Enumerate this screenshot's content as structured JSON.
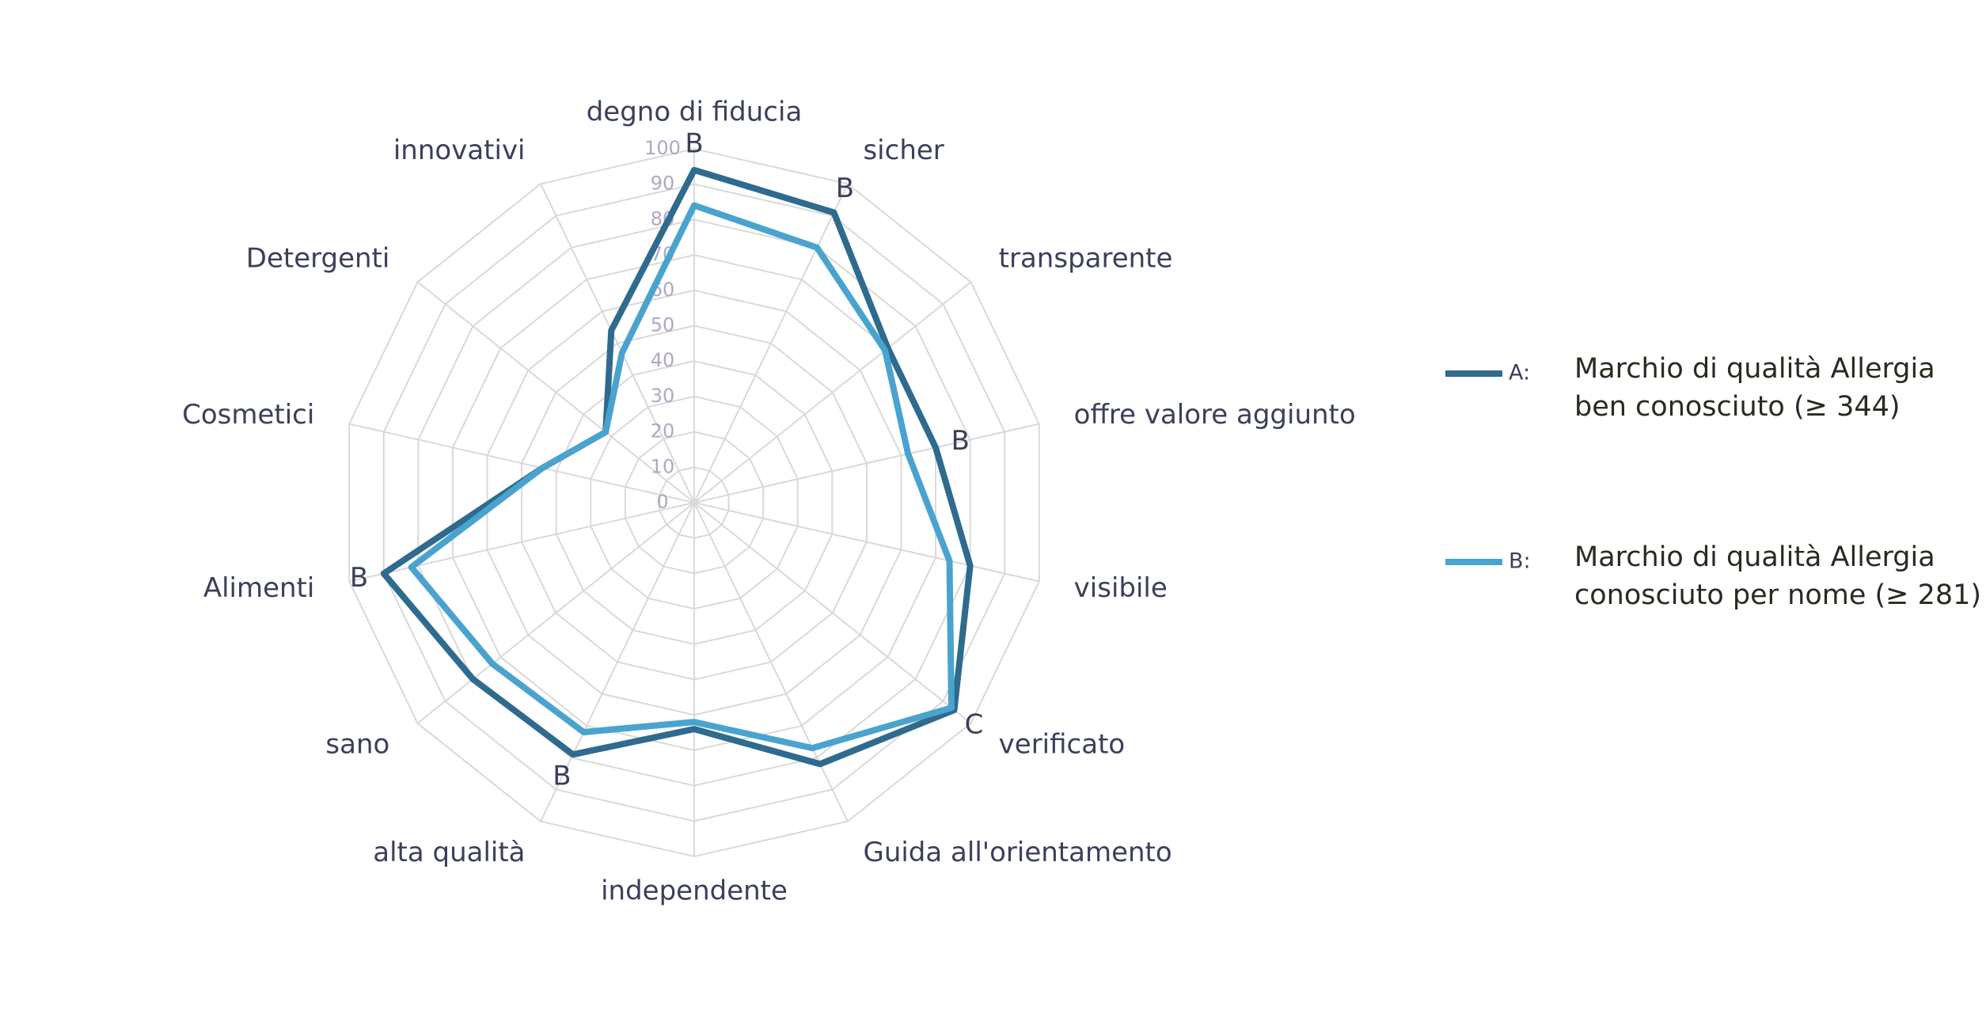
{
  "chart_data": {
    "type": "radar",
    "categories": [
      "degno di fiducia",
      "sicher",
      "transparente",
      "offre valore aggiunto",
      "visibile",
      "verificato",
      "Guida all'orientamento",
      "independente",
      "alta qualità",
      "sano",
      "Alimenti",
      "Cosmetici",
      "Detergenti",
      "innovativi"
    ],
    "series": [
      {
        "key": "A:",
        "name": "Marchio di qualità Allergia ben conosciuto (≥ 344)",
        "color": "#2e6b8e",
        "values": [
          94,
          91,
          70,
          70,
          80,
          94,
          82,
          64,
          79,
          80,
          90,
          44,
          32,
          54
        ]
      },
      {
        "key": "B:",
        "name": "Marchio di qualità Allergia conosciuto per nome (≥ 281)",
        "color": "#4aa3cf",
        "values": [
          84,
          80,
          69,
          62,
          74,
          93,
          77,
          62,
          72,
          73,
          82,
          44,
          32,
          47
        ]
      }
    ],
    "annotations": [
      "B",
      "B",
      null,
      "B",
      null,
      "C",
      null,
      null,
      "B",
      null,
      "B",
      null,
      null,
      null
    ],
    "rlim": [
      0,
      100
    ],
    "rticks": [
      0,
      10,
      20,
      30,
      40,
      50,
      60,
      70,
      80,
      90,
      100
    ],
    "grid": true
  }
}
